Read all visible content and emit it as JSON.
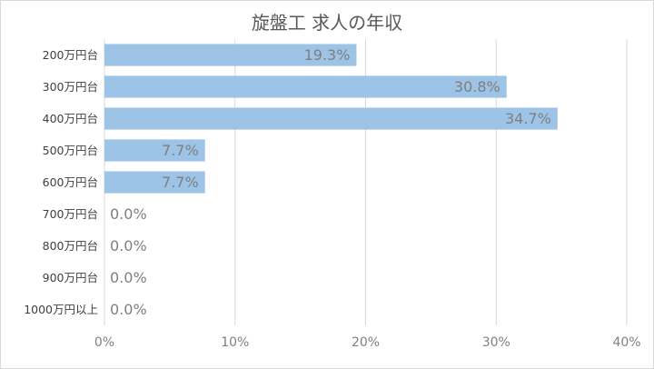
{
  "chart_data": {
    "type": "bar",
    "orientation": "horizontal",
    "title": "旋盤工 求人の年収",
    "categories": [
      "200万円台",
      "300万円台",
      "400万円台",
      "500万円台",
      "600万円台",
      "700万円台",
      "800万円台",
      "900万円台",
      "1000万円以上"
    ],
    "values": [
      19.3,
      30.8,
      34.7,
      7.7,
      7.7,
      0.0,
      0.0,
      0.0,
      0.0
    ],
    "data_labels": [
      "19.3%",
      "30.8%",
      "34.7%",
      "7.7%",
      "7.7%",
      "0.0%",
      "0.0%",
      "0.0%",
      "0.0%"
    ],
    "xlim": [
      0,
      40
    ],
    "x_ticks": [
      0,
      10,
      20,
      30,
      40
    ],
    "x_tick_labels": [
      "0%",
      "10%",
      "20%",
      "30%",
      "40%"
    ],
    "grid": true,
    "bar_color": "#9dc3e6",
    "grid_color": "#d9d9d9"
  }
}
